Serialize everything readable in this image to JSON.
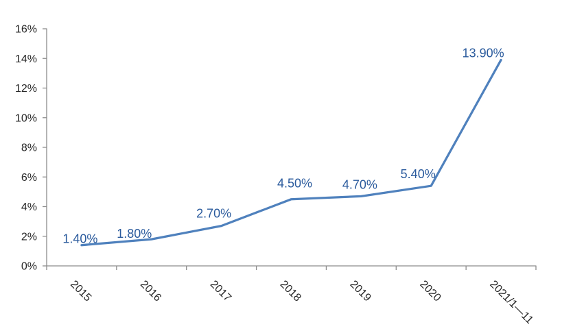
{
  "chart_data": {
    "type": "line",
    "title": "",
    "categories": [
      "2015",
      "2016",
      "2017",
      "2018",
      "2019",
      "2020",
      "2021/1—11"
    ],
    "values": [
      1.4,
      1.8,
      2.7,
      4.5,
      4.7,
      5.4,
      13.9
    ],
    "data_labels": [
      "1.40%",
      "1.80%",
      "2.70%",
      "4.50%",
      "4.70%",
      "5.40%",
      "13.90%"
    ],
    "y_axis": {
      "min": 0,
      "max": 16,
      "step": 2,
      "tick_labels": [
        "0%",
        "2%",
        "4%",
        "6%",
        "8%",
        "10%",
        "12%",
        "14%",
        "16%"
      ]
    },
    "x_label_rotation_deg": 45,
    "grid": false,
    "legend": false,
    "colors": {
      "line": "#4f81bd",
      "data_label": "#2b5b9d",
      "axis": "#8c8c8c",
      "axis_text": "#262626",
      "background": "#ffffff"
    }
  }
}
